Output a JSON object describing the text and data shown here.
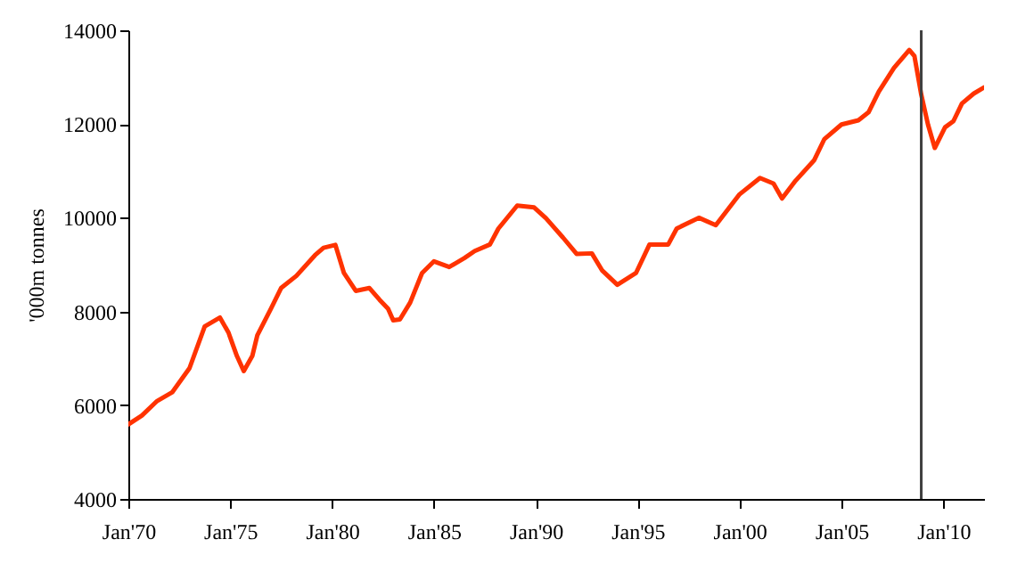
{
  "chart_data": {
    "type": "line",
    "ylabel": "'000m tonnes",
    "x": [
      "1970-01",
      "1970-09",
      "1971-06",
      "1972-03",
      "1973-01",
      "1973-10",
      "1974-07",
      "1974-12",
      "1975-05",
      "1975-09",
      "1976-02",
      "1976-05",
      "1977-01",
      "1977-07",
      "1978-04",
      "1979-03",
      "1979-08",
      "1980-03",
      "1980-08",
      "1981-03",
      "1981-11",
      "1982-05",
      "1982-10",
      "1983-01",
      "1983-05",
      "1983-11",
      "1984-06",
      "1985-01",
      "1985-10",
      "1986-07",
      "1987-01",
      "1987-10",
      "1988-03",
      "1989-02",
      "1989-12",
      "1990-07",
      "1991-05",
      "1992-01",
      "1992-10",
      "1993-04",
      "1994-01",
      "1994-12",
      "1995-08",
      "1996-07",
      "1996-12",
      "1998-01",
      "1998-11",
      "2000-01",
      "2001-01",
      "2001-09",
      "2002-02",
      "2002-10",
      "2003-09",
      "2004-03",
      "2005-01",
      "2005-11",
      "2006-05",
      "2006-11",
      "2007-08",
      "2008-05",
      "2008-08",
      "2008-12",
      "2009-04",
      "2009-08",
      "2010-02",
      "2010-07",
      "2010-12",
      "2011-07",
      "2012-01"
    ],
    "series": [
      {
        "color": "#ff3300",
        "values": [
          5590,
          5780,
          6090,
          6280,
          6790,
          7680,
          7870,
          7550,
          7050,
          6730,
          7050,
          7490,
          8060,
          8500,
          8760,
          9200,
          9360,
          9420,
          8820,
          8440,
          8500,
          8250,
          8060,
          7810,
          7830,
          8190,
          8820,
          9070,
          8950,
          9140,
          9290,
          9430,
          9770,
          10260,
          10220,
          9990,
          9580,
          9230,
          9240,
          8880,
          8570,
          8820,
          9430,
          9430,
          9770,
          10000,
          9840,
          10500,
          10850,
          10730,
          10410,
          10790,
          11230,
          11680,
          11990,
          12080,
          12250,
          12690,
          13200,
          13580,
          13450,
          12630,
          11990,
          11490,
          11930,
          12060,
          12440,
          12650,
          12780
        ]
      }
    ],
    "xlim": [
      "1970-01",
      "2012-01"
    ],
    "xticks": [
      {
        "value": "1970-01",
        "label": "Jan'70"
      },
      {
        "value": "1975-01",
        "label": "Jan'75"
      },
      {
        "value": "1980-01",
        "label": "Jan'80"
      },
      {
        "value": "1985-01",
        "label": "Jan'85"
      },
      {
        "value": "1990-01",
        "label": "Jan'90"
      },
      {
        "value": "1995-01",
        "label": "Jan'95"
      },
      {
        "value": "2000-01",
        "label": "Jan'00"
      },
      {
        "value": "2005-01",
        "label": "Jan'05"
      },
      {
        "value": "2010-01",
        "label": "Jan'10"
      }
    ],
    "ylim": [
      4000,
      14000
    ],
    "yticks": [
      4000,
      6000,
      8000,
      10000,
      12000,
      14000
    ],
    "grid": false,
    "marker": "none",
    "line_style": "solid",
    "ref_lines": [
      {
        "axis": "x",
        "value": "2008-12",
        "color": "#404040"
      }
    ]
  }
}
